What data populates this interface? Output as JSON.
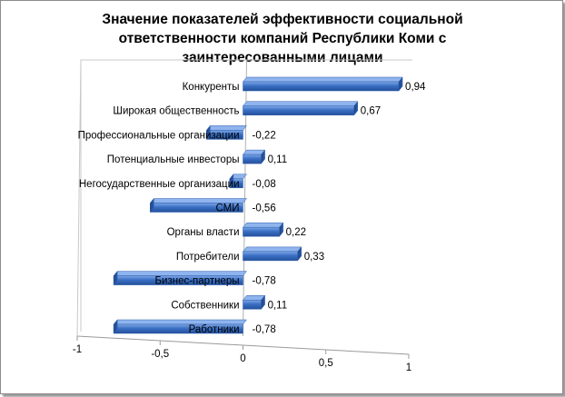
{
  "chart_data": {
    "type": "bar",
    "orientation": "horizontal",
    "title": "Значение показателей эффективности социальной ответственности компаний Республики Коми с заинтересованными лицами",
    "categories": [
      "Конкуренты",
      "Широкая общественность",
      "Профессиональные организации",
      "Потенциальные инвесторы",
      "Негосударственные организации",
      "СМИ",
      "Органы власти",
      "Потребители",
      "Бизнес-партнеры",
      "Собственники",
      "Работники"
    ],
    "value_labels": [
      "0,94",
      "0,67",
      "-0,22",
      "0,11",
      "-0,08",
      "-0,56",
      "0,22",
      "0,33",
      "-0,78",
      "0,11",
      "-0,78"
    ],
    "values": [
      0.94,
      0.67,
      -0.22,
      0.11,
      -0.08,
      -0.56,
      0.22,
      0.33,
      -0.78,
      0.11,
      -0.78
    ],
    "xlim": [
      -1,
      1
    ],
    "x_ticks": [
      -1,
      -0.5,
      0,
      0.5,
      1
    ],
    "x_tick_labels": [
      "-1",
      "-0,5",
      "0",
      "0,5",
      "1"
    ],
    "bar_color": "#3a6fc4",
    "legend": "none",
    "grid": false
  }
}
